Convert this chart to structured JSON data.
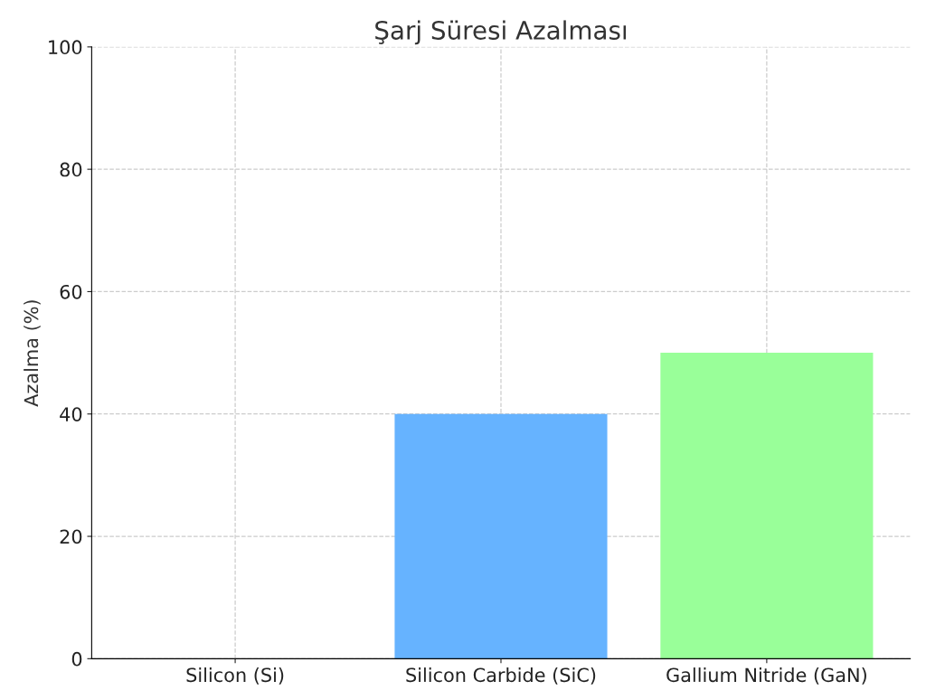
{
  "chart_data": {
    "type": "bar",
    "title": "Şarj Süresi Azalması",
    "ylabel": "Azalma (%)",
    "categories": [
      "Silicon (Si)",
      "Silicon Carbide (SiC)",
      "Gallium Nitride (GaN)"
    ],
    "values": [
      0,
      40,
      50
    ],
    "colors": [
      "#ff9999",
      "#66b3ff",
      "#99ff99"
    ],
    "ylim": [
      0,
      100
    ],
    "yticks": [
      0,
      20,
      40,
      60,
      80,
      100
    ],
    "grid": true
  }
}
